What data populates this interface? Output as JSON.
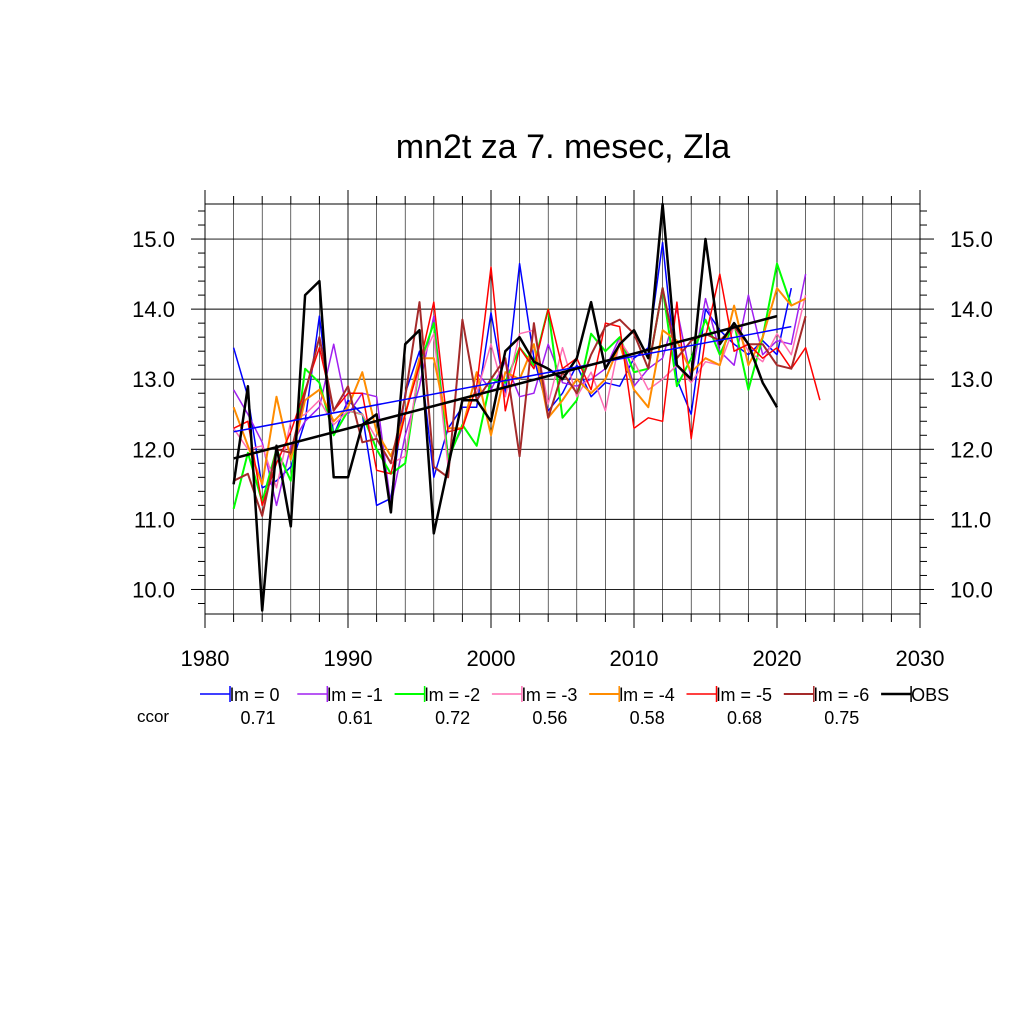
{
  "chart_data": {
    "type": "line",
    "title": "mn2t za 7. mesec, Zla",
    "xlabel": "",
    "ylabel": "",
    "xlim": [
      1980,
      2030
    ],
    "ylim": [
      9.65,
      15.5
    ],
    "x_ticks": [
      "1980",
      "1990",
      "2000",
      "2010",
      "2020",
      "2030"
    ],
    "x_tick_values": [
      1980,
      1990,
      2000,
      2010,
      2020,
      2030
    ],
    "y_ticks": [
      "10.0",
      "11.0",
      "12.0",
      "13.0",
      "14.0",
      "15.0"
    ],
    "y_tick_values": [
      10,
      11,
      12,
      13,
      14,
      15
    ],
    "grid": true,
    "ccor_label": "ccor",
    "ccor_color": "#0000ff",
    "series": [
      {
        "name": "lm = 0",
        "ccor": "0.71",
        "color": "#0000ff",
        "width": 1.5,
        "x0": 1982,
        "values": [
          13.45,
          12.75,
          11.45,
          11.55,
          11.75,
          12.4,
          13.9,
          12.2,
          12.7,
          12.5,
          11.2,
          11.3,
          12.8,
          13.4,
          11.6,
          12.3,
          12.6,
          12.6,
          13.95,
          12.8,
          14.65,
          13.3,
          12.55,
          12.8,
          13.2,
          12.75,
          12.95,
          12.9,
          13.3,
          13.45,
          14.95,
          13.0,
          12.5,
          14.0,
          13.7,
          13.5,
          13.35,
          13.55,
          13.35,
          14.3
        ]
      },
      {
        "name": "lm = -1",
        "ccor": "0.61",
        "color": "#a020f0",
        "width": 1.5,
        "x0": 1982,
        "values": [
          12.85,
          12.5,
          12.1,
          11.2,
          12.05,
          12.4,
          12.6,
          13.5,
          12.5,
          12.8,
          12.75,
          11.2,
          12.2,
          12.9,
          13.9,
          11.9,
          12.3,
          13.1,
          12.85,
          13.25,
          12.75,
          12.8,
          13.5,
          12.95,
          12.9,
          13.0,
          13.15,
          13.6,
          12.9,
          13.15,
          13.3,
          14.0,
          13.0,
          14.15,
          13.4,
          13.2,
          14.2,
          13.35,
          13.55,
          13.5,
          14.5
        ]
      },
      {
        "name": "lm = -2",
        "ccor": "0.72",
        "color": "#00ff00",
        "width": 2,
        "x0": 1982,
        "values": [
          11.15,
          11.95,
          11.25,
          12.0,
          11.55,
          13.15,
          12.95,
          12.2,
          12.55,
          12.5,
          12.0,
          11.65,
          11.8,
          13.2,
          13.8,
          11.85,
          12.35,
          12.05,
          13.0,
          12.95,
          13.45,
          13.2,
          14.0,
          12.45,
          12.7,
          13.65,
          13.4,
          13.6,
          13.1,
          13.15,
          14.3,
          12.9,
          13.3,
          13.85,
          13.35,
          13.8,
          12.85,
          13.6,
          14.65,
          14.05
        ]
      },
      {
        "name": "lm = -3",
        "ccor": "0.56",
        "color": "#ff6eb4",
        "width": 1.5,
        "x0": 1982,
        "values": [
          12.3,
          12.0,
          12.05,
          11.45,
          12.4,
          12.5,
          12.7,
          12.35,
          12.55,
          12.5,
          12.15,
          11.8,
          11.9,
          13.2,
          13.65,
          11.75,
          12.7,
          12.8,
          13.5,
          12.75,
          13.65,
          13.7,
          12.65,
          13.45,
          12.75,
          13.1,
          12.55,
          13.55,
          13.25,
          12.85,
          13.0,
          13.2,
          12.95,
          13.25,
          13.2,
          13.75,
          13.4,
          13.25,
          13.65,
          13.35,
          14.2
        ]
      },
      {
        "name": "lm = -4",
        "ccor": "0.58",
        "color": "#ff8c00",
        "width": 2,
        "x0": 1982,
        "values": [
          12.6,
          12.05,
          11.5,
          12.75,
          11.85,
          12.7,
          12.85,
          12.4,
          12.6,
          13.1,
          12.25,
          11.9,
          12.5,
          13.3,
          13.3,
          12.3,
          12.3,
          13.1,
          12.2,
          13.1,
          13.0,
          13.5,
          12.45,
          12.7,
          13.0,
          12.8,
          13.0,
          13.5,
          12.85,
          12.6,
          13.7,
          13.55,
          13.1,
          13.3,
          13.2,
          14.05,
          13.2,
          13.6,
          14.3,
          14.05,
          14.15
        ]
      },
      {
        "name": "lm = -5",
        "ccor": "0.68",
        "color": "#ff0000",
        "width": 1.5,
        "x0": 1982,
        "values": [
          12.3,
          12.4,
          11.2,
          11.8,
          12.25,
          12.85,
          13.45,
          12.55,
          12.8,
          12.8,
          11.7,
          11.65,
          12.5,
          13.2,
          14.1,
          12.25,
          12.3,
          12.9,
          14.6,
          12.55,
          13.45,
          13.15,
          14.0,
          13.15,
          13.3,
          12.85,
          13.8,
          13.75,
          12.3,
          12.45,
          12.4,
          14.1,
          12.15,
          13.6,
          14.5,
          13.4,
          13.5,
          13.3,
          13.45,
          13.15,
          13.45,
          12.7
        ]
      },
      {
        "name": "lm = -6",
        "ccor": "0.75",
        "color": "#a52a2a",
        "width": 2,
        "x0": 1982,
        "values": [
          11.55,
          11.65,
          11.05,
          12.0,
          11.95,
          12.8,
          13.6,
          12.55,
          12.9,
          12.1,
          12.15,
          11.8,
          12.75,
          14.1,
          11.75,
          11.6,
          13.85,
          12.7,
          13.0,
          13.3,
          11.9,
          13.8,
          12.45,
          13.1,
          12.8,
          13.35,
          13.75,
          13.85,
          13.65,
          13.15,
          14.3,
          13.3,
          13.55,
          13.65,
          13.55,
          13.75,
          13.5,
          13.5,
          13.2,
          13.15,
          13.9
        ]
      },
      {
        "name": "OBS",
        "ccor": "",
        "color": "#000000",
        "width": 2.5,
        "x0": 1982,
        "values": [
          11.5,
          12.9,
          9.7,
          12.05,
          10.9,
          14.2,
          14.4,
          11.6,
          11.6,
          12.35,
          12.5,
          11.1,
          13.5,
          13.7,
          10.8,
          11.75,
          12.7,
          12.7,
          12.4,
          13.4,
          13.6,
          13.25,
          13.15,
          13.0,
          13.3,
          14.1,
          13.15,
          13.5,
          13.7,
          13.3,
          15.5,
          13.2,
          13.0,
          15.0,
          13.5,
          13.8,
          13.5,
          12.95,
          12.6
        ]
      }
    ],
    "trends": [
      {
        "name": "lm = 0 trend",
        "color": "#0000ff",
        "width": 1.5,
        "x": [
          1982,
          2021
        ],
        "y": [
          12.25,
          13.75
        ]
      },
      {
        "name": "OBS trend",
        "color": "#000000",
        "width": 2.5,
        "x": [
          1982,
          2020
        ],
        "y": [
          11.87,
          13.9
        ]
      }
    ]
  }
}
